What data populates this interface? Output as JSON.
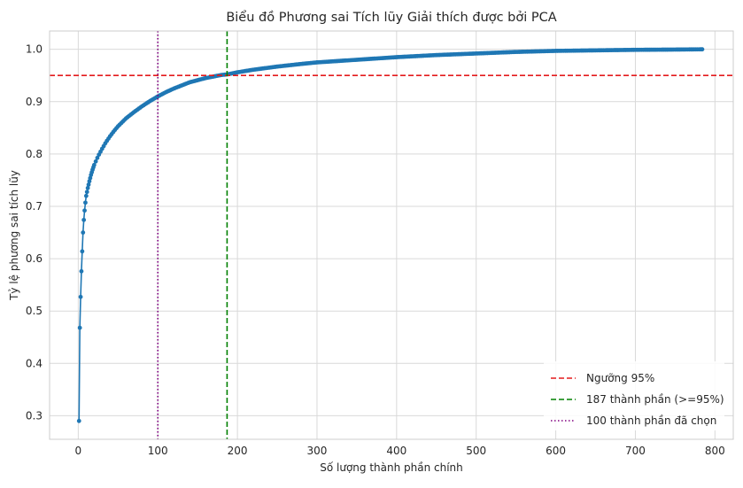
{
  "chart_data": {
    "type": "line",
    "title": "Biểu đồ Phương sai Tích lũy Giải thích được bởi PCA",
    "xlabel": "Số lượng thành phần chính",
    "ylabel": "Tỷ lệ phương sai tích lũy",
    "xlim": [
      -36,
      823
    ],
    "ylim": [
      0.255,
      1.035
    ],
    "xticks": [
      0,
      100,
      200,
      300,
      400,
      500,
      600,
      700,
      800
    ],
    "yticks": [
      0.3,
      0.4,
      0.5,
      0.6,
      0.7,
      0.8,
      0.9,
      1.0
    ],
    "grid": true,
    "legend_position": "bottom-right",
    "colors": {
      "series": "#1f77b4",
      "threshold": "#e31a1c",
      "components_95": "#008000",
      "selected": "#800080",
      "grid": "#d9d9d9"
    },
    "series": [
      {
        "values": [
          [
            1,
            0.29
          ],
          [
            2,
            0.468
          ],
          [
            3,
            0.527
          ],
          [
            4,
            0.576
          ],
          [
            5,
            0.614
          ],
          [
            6,
            0.65
          ],
          [
            7,
            0.674
          ],
          [
            8,
            0.692
          ],
          [
            9,
            0.707
          ],
          [
            10,
            0.72
          ],
          [
            12,
            0.735
          ],
          [
            14,
            0.748
          ],
          [
            16,
            0.76
          ],
          [
            18,
            0.77
          ],
          [
            20,
            0.779
          ],
          [
            25,
            0.796
          ],
          [
            30,
            0.81
          ],
          [
            35,
            0.823
          ],
          [
            40,
            0.834
          ],
          [
            45,
            0.844
          ],
          [
            50,
            0.853
          ],
          [
            60,
            0.868
          ],
          [
            70,
            0.88
          ],
          [
            80,
            0.891
          ],
          [
            90,
            0.901
          ],
          [
            100,
            0.91
          ],
          [
            110,
            0.918
          ],
          [
            120,
            0.925
          ],
          [
            130,
            0.931
          ],
          [
            140,
            0.937
          ],
          [
            150,
            0.941
          ],
          [
            160,
            0.945
          ],
          [
            170,
            0.948
          ],
          [
            180,
            0.951
          ],
          [
            187,
            0.952
          ],
          [
            200,
            0.956
          ],
          [
            220,
            0.961
          ],
          [
            250,
            0.967
          ],
          [
            280,
            0.972
          ],
          [
            300,
            0.975
          ],
          [
            350,
            0.98
          ],
          [
            400,
            0.985
          ],
          [
            450,
            0.989
          ],
          [
            500,
            0.992
          ],
          [
            550,
            0.995
          ],
          [
            600,
            0.997
          ],
          [
            650,
            0.998
          ],
          [
            700,
            0.999
          ],
          [
            750,
            0.9995
          ],
          [
            784,
            1.0
          ]
        ]
      }
    ],
    "reference_lines": [
      {
        "orientation": "horizontal",
        "value": 0.95,
        "style": "dashed",
        "label": "Ngưỡng 95%"
      },
      {
        "orientation": "vertical",
        "value": 187,
        "style": "dashed",
        "label": "187 thành phần (>=95%)"
      },
      {
        "orientation": "vertical",
        "value": 100,
        "style": "dotted",
        "label": "100 thành phần đã chọn"
      }
    ]
  }
}
